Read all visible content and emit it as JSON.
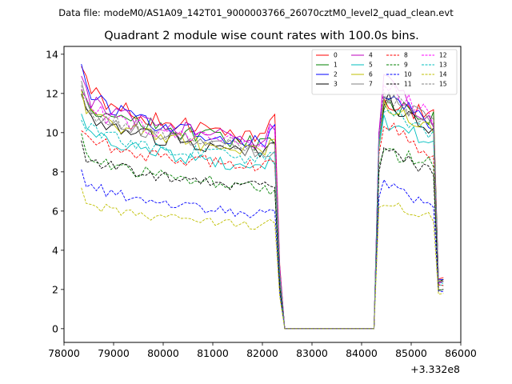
{
  "suptitle": "Data file: modeM0/AS1A09_142T01_9000003766_26070cztM0_level2_quad_clean.evt",
  "chart_data": {
    "type": "line",
    "title": "Quadrant 2 module wise count rates with 100.0s bins.",
    "xlabel": "",
    "ylabel": "",
    "x_offset_label": "+3.332e8",
    "xlim": [
      78000,
      86000
    ],
    "ylim": [
      -0.7,
      14.4
    ],
    "xticks": [
      78000,
      79000,
      80000,
      81000,
      82000,
      83000,
      84000,
      85000,
      86000
    ],
    "yticks": [
      0,
      2,
      4,
      6,
      8,
      10,
      12,
      14
    ],
    "legend_position": "upper-right",
    "segment_breaks_x": [
      78350,
      82250,
      82450,
      84250,
      84350,
      85550,
      85650
    ],
    "series": [
      {
        "name": "0",
        "color": "#ff0000",
        "dash": "solid",
        "values": [
          13.6,
          9.6,
          10.8,
          0.0,
          0.0,
          9.8,
          11.4,
          10.8,
          2.6
        ]
      },
      {
        "name": "1",
        "color": "#008000",
        "dash": "solid",
        "values": [
          12.6,
          9.4,
          9.6,
          0.0,
          0.0,
          9.4,
          11.6,
          10.6,
          2.4
        ]
      },
      {
        "name": "2",
        "color": "#0000ff",
        "dash": "solid",
        "values": [
          13.2,
          9.4,
          10.3,
          0.0,
          0.0,
          10.0,
          12.2,
          10.3,
          2.5
        ]
      },
      {
        "name": "3",
        "color": "#000000",
        "dash": "solid",
        "values": [
          11.8,
          9.0,
          9.8,
          0.0,
          0.0,
          9.6,
          11.8,
          9.8,
          2.5
        ]
      },
      {
        "name": "4",
        "color": "#bf00bf",
        "dash": "solid",
        "values": [
          12.9,
          9.6,
          10.2,
          0.0,
          0.0,
          9.7,
          12.6,
          10.4,
          2.4
        ]
      },
      {
        "name": "5",
        "color": "#00bfbf",
        "dash": "solid",
        "values": [
          11.2,
          8.2,
          8.6,
          0.0,
          0.0,
          9.0,
          10.6,
          9.4,
          2.2
        ]
      },
      {
        "name": "6",
        "color": "#bfbf00",
        "dash": "solid",
        "values": [
          12.0,
          9.0,
          9.4,
          0.0,
          0.0,
          9.6,
          11.6,
          10.0,
          2.4
        ]
      },
      {
        "name": "7",
        "color": "#808080",
        "dash": "solid",
        "values": [
          12.4,
          9.0,
          9.0,
          0.0,
          0.0,
          9.6,
          12.0,
          10.2,
          2.4
        ]
      },
      {
        "name": "8",
        "color": "#ff0000",
        "dash": "dashed",
        "values": [
          10.4,
          8.2,
          8.6,
          0.0,
          0.0,
          9.0,
          10.6,
          8.6,
          2.2
        ]
      },
      {
        "name": "9",
        "color": "#008000",
        "dash": "dashed",
        "values": [
          9.6,
          7.2,
          7.0,
          0.0,
          0.0,
          8.0,
          9.0,
          8.4,
          2.0
        ]
      },
      {
        "name": "10",
        "color": "#0000ff",
        "dash": "dashed",
        "values": [
          8.2,
          5.8,
          6.0,
          0.0,
          0.0,
          6.6,
          7.4,
          6.0,
          1.9
        ]
      },
      {
        "name": "11",
        "color": "#000000",
        "dash": "dashed",
        "values": [
          9.4,
          7.2,
          7.0,
          0.0,
          0.0,
          8.0,
          9.2,
          7.8,
          2.0
        ]
      },
      {
        "name": "12",
        "color": "#ff00ff",
        "dash": "dashed",
        "values": [
          12.2,
          9.4,
          10.2,
          0.0,
          0.0,
          9.8,
          12.4,
          10.6,
          2.4
        ]
      },
      {
        "name": "13",
        "color": "#00bfbf",
        "dash": "dashed",
        "values": [
          11.0,
          8.6,
          9.0,
          0.0,
          0.0,
          9.4,
          11.2,
          9.6,
          2.3
        ]
      },
      {
        "name": "14",
        "color": "#bfbf00",
        "dash": "dashed",
        "values": [
          7.0,
          5.2,
          5.4,
          0.0,
          0.0,
          6.0,
          6.4,
          5.6,
          1.8
        ]
      },
      {
        "name": "15",
        "color": "#808080",
        "dash": "dashed",
        "values": [
          12.2,
          9.2,
          9.6,
          0.0,
          0.0,
          9.6,
          12.0,
          10.4,
          2.4
        ]
      }
    ]
  }
}
